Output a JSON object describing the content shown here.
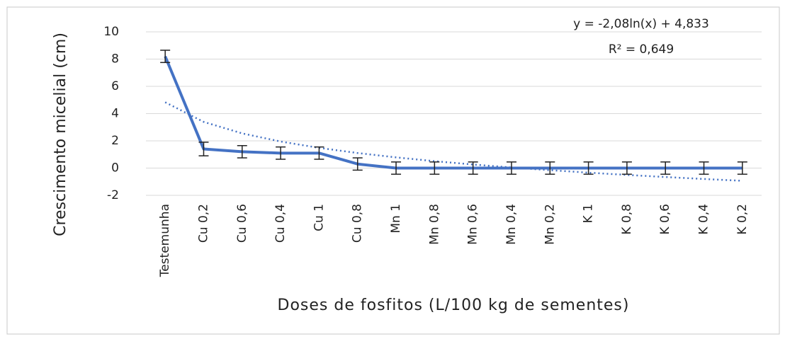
{
  "chart_data": {
    "type": "line",
    "y_label": "Crescimento micelial (cm)",
    "x_label": "Doses de fosfitos (L/100 kg de sementes)",
    "categories": [
      "Testemunha",
      "Cu 0,2",
      "Cu 0,6",
      "Cu 0,4",
      "Cu 1",
      "Cu 0,8",
      "Mn 1",
      "Mn 0,8",
      "Mn 0,6",
      "Mn 0,4",
      "Mn 0,2",
      "K 1",
      "K 0,8",
      "K 0,6",
      "K 0,4",
      "K 0,2"
    ],
    "series": [
      {
        "color": "#4472c4",
        "values": [
          8.2,
          1.4,
          1.2,
          1.1,
          1.1,
          0.3,
          0,
          0,
          0,
          0,
          0,
          0,
          0,
          0,
          0,
          0
        ],
        "errors": [
          0.45,
          0.5,
          0.45,
          0.45,
          0.45,
          0.45,
          0.45,
          0.45,
          0.45,
          0.45,
          0.45,
          0.45,
          0.45,
          0.45,
          0.45,
          0.45
        ]
      }
    ],
    "trendline": {
      "color": "#4472c4",
      "dashed": true,
      "values": [
        4.833,
        3.391,
        2.548,
        1.949,
        1.485,
        1.106,
        0.786,
        0.508,
        0.263,
        0.044,
        -0.154,
        -0.336,
        -0.502,
        -0.656,
        -0.8,
        -0.934
      ]
    },
    "annotations": [
      "y = -2,08ln(x) + 4,833",
      "R² = 0,649"
    ],
    "ylim": [
      -2,
      10
    ],
    "yticks": [
      -2,
      0,
      2,
      4,
      6,
      8,
      10
    ],
    "grid": true
  }
}
